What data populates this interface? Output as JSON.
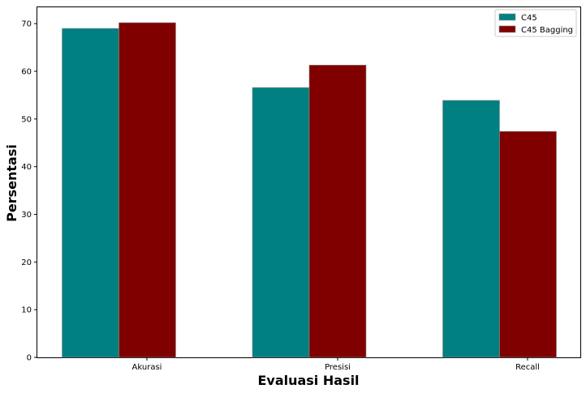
{
  "chart_data": {
    "type": "bar",
    "categories": [
      "Akurasi",
      "Presisi",
      "Recall"
    ],
    "series": [
      {
        "name": "C45",
        "values": [
          69.0,
          56.6,
          53.9
        ],
        "color": "#008080"
      },
      {
        "name": "C45 Bagging",
        "values": [
          70.2,
          61.3,
          47.4
        ],
        "color": "#800000"
      }
    ],
    "title": "",
    "xlabel": "Evaluasi Hasil",
    "ylabel": "Persentasi",
    "ylim": [
      0,
      73.6
    ],
    "yticks": [
      0,
      10,
      20,
      30,
      40,
      50,
      60,
      70
    ],
    "grid": false,
    "legend_position": "top-right"
  }
}
